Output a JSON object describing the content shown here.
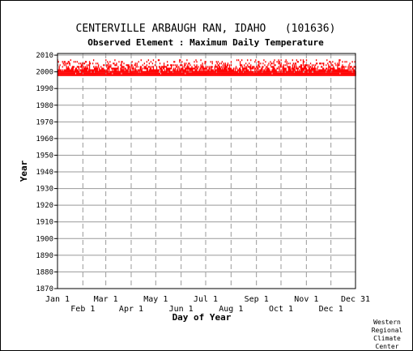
{
  "chart_data": {
    "type": "scatter",
    "title": "CENTERVILLE ARBAUGH RAN, IDAHO   (101636)",
    "subtitle": "Observed Element : Maximum Daily Temperature",
    "xlabel": "Day of Year",
    "ylabel": "Year",
    "xlim": [
      1,
      365
    ],
    "ylim": [
      1870,
      2011
    ],
    "y_ticks": [
      1870,
      1880,
      1890,
      1900,
      1910,
      1920,
      1930,
      1940,
      1950,
      1960,
      1970,
      1980,
      1990,
      2000,
      2010
    ],
    "x_ticks_upper": [
      {
        "label": "Jan 1",
        "day": 1
      },
      {
        "label": "Mar 1",
        "day": 60
      },
      {
        "label": "May 1",
        "day": 121
      },
      {
        "label": "Jul 1",
        "day": 182
      },
      {
        "label": "Sep 1",
        "day": 244
      },
      {
        "label": "Nov 1",
        "day": 305
      },
      {
        "label": "Dec 31",
        "day": 365
      }
    ],
    "x_ticks_lower": [
      {
        "label": "Feb 1",
        "day": 32
      },
      {
        "label": "Apr 1",
        "day": 91
      },
      {
        "label": "Jun 1",
        "day": 152
      },
      {
        "label": "Aug 1",
        "day": 213
      },
      {
        "label": "Oct 1",
        "day": 274
      },
      {
        "label": "Dec 1",
        "day": 335
      }
    ],
    "grid": true,
    "point_color": "#ff0000",
    "record_years": [
      1998,
      1999,
      2000,
      2001,
      2002,
      2003,
      2004,
      2005,
      2006,
      2007
    ],
    "record_density_by_year": [
      1.0,
      0.95,
      0.9,
      0.75,
      0.6,
      0.45,
      0.3,
      0.22,
      0.15,
      0.08
    ]
  },
  "credit": [
    "Western",
    "Regional",
    "Climate",
    "Center"
  ]
}
